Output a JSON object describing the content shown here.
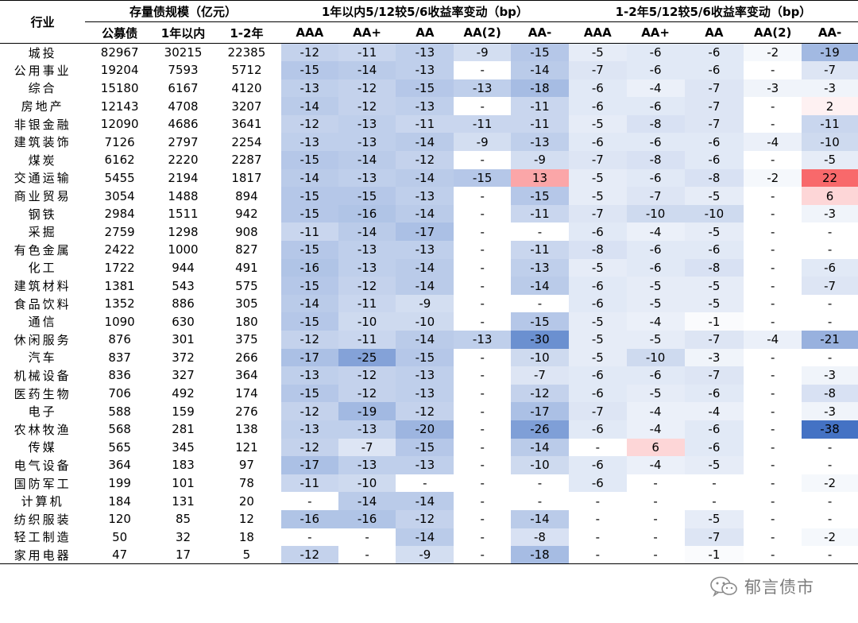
{
  "header": {
    "label_col": "行业",
    "group_scale": "存量债规模（亿元）",
    "group_1y": "1年以内5/12较5/6收益率变动（bp）",
    "group_12y": "1-2年5/12较5/6收益率变动（bp）",
    "scale_cols": [
      "公募债",
      "1年以内",
      "1-2年"
    ],
    "rating_cols": [
      "AAA",
      "AA+",
      "AA",
      "AA(2)",
      "AA-"
    ]
  },
  "colors": {
    "negative": "#4472c4",
    "positive": "#f8696b",
    "neutral": "#ffffff"
  },
  "rows": [
    {
      "name": "城投",
      "scale": [
        "82967",
        "30215",
        "22385"
      ],
      "y1": [
        "-12",
        "-11",
        "-13",
        "-9",
        "-15"
      ],
      "y2": [
        "-5",
        "-6",
        "-6",
        "-2",
        "-19"
      ]
    },
    {
      "name": "公用事业",
      "scale": [
        "19204",
        "7593",
        "5712"
      ],
      "y1": [
        "-15",
        "-14",
        "-13",
        "-",
        "-14"
      ],
      "y2": [
        "-7",
        "-6",
        "-6",
        "-",
        "-7"
      ]
    },
    {
      "name": "综合",
      "scale": [
        "15180",
        "6167",
        "4120"
      ],
      "y1": [
        "-13",
        "-12",
        "-15",
        "-13",
        "-18"
      ],
      "y2": [
        "-6",
        "-4",
        "-7",
        "-3",
        "-3"
      ]
    },
    {
      "name": "房地产",
      "scale": [
        "12143",
        "4708",
        "3207"
      ],
      "y1": [
        "-14",
        "-12",
        "-13",
        "-",
        "-11"
      ],
      "y2": [
        "-6",
        "-6",
        "-7",
        "-",
        "2"
      ]
    },
    {
      "name": "非银金融",
      "scale": [
        "12090",
        "4686",
        "3641"
      ],
      "y1": [
        "-12",
        "-13",
        "-11",
        "-11",
        "-11"
      ],
      "y2": [
        "-5",
        "-8",
        "-7",
        "-",
        "-11"
      ]
    },
    {
      "name": "建筑装饰",
      "scale": [
        "7126",
        "2797",
        "2254"
      ],
      "y1": [
        "-13",
        "-13",
        "-14",
        "-9",
        "-13"
      ],
      "y2": [
        "-6",
        "-6",
        "-6",
        "-4",
        "-10"
      ]
    },
    {
      "name": "煤炭",
      "scale": [
        "6162",
        "2220",
        "2287"
      ],
      "y1": [
        "-15",
        "-14",
        "-12",
        "-",
        "-9"
      ],
      "y2": [
        "-7",
        "-8",
        "-6",
        "-",
        "-5"
      ]
    },
    {
      "name": "交通运输",
      "scale": [
        "5455",
        "2194",
        "1817"
      ],
      "y1": [
        "-14",
        "-13",
        "-14",
        "-15",
        "13"
      ],
      "y2": [
        "-5",
        "-6",
        "-8",
        "-2",
        "22"
      ]
    },
    {
      "name": "商业贸易",
      "scale": [
        "3054",
        "1488",
        "894"
      ],
      "y1": [
        "-15",
        "-15",
        "-13",
        "-",
        "-15"
      ],
      "y2": [
        "-5",
        "-7",
        "-5",
        "-",
        "6"
      ]
    },
    {
      "name": "钢铁",
      "scale": [
        "2984",
        "1511",
        "942"
      ],
      "y1": [
        "-15",
        "-16",
        "-14",
        "-",
        "-11"
      ],
      "y2": [
        "-7",
        "-10",
        "-10",
        "-",
        "-3"
      ]
    },
    {
      "name": "采掘",
      "scale": [
        "2759",
        "1298",
        "908"
      ],
      "y1": [
        "-11",
        "-14",
        "-17",
        "-",
        "-"
      ],
      "y2": [
        "-6",
        "-4",
        "-5",
        "-",
        "-"
      ]
    },
    {
      "name": "有色金属",
      "scale": [
        "2422",
        "1000",
        "827"
      ],
      "y1": [
        "-15",
        "-13",
        "-13",
        "-",
        "-11"
      ],
      "y2": [
        "-8",
        "-6",
        "-6",
        "-",
        "-"
      ]
    },
    {
      "name": "化工",
      "scale": [
        "1722",
        "944",
        "491"
      ],
      "y1": [
        "-16",
        "-13",
        "-14",
        "-",
        "-13"
      ],
      "y2": [
        "-5",
        "-6",
        "-8",
        "-",
        "-6"
      ]
    },
    {
      "name": "建筑材料",
      "scale": [
        "1381",
        "543",
        "575"
      ],
      "y1": [
        "-15",
        "-12",
        "-14",
        "-",
        "-14"
      ],
      "y2": [
        "-6",
        "-5",
        "-5",
        "-",
        "-7"
      ]
    },
    {
      "name": "食品饮料",
      "scale": [
        "1352",
        "886",
        "305"
      ],
      "y1": [
        "-14",
        "-11",
        "-9",
        "-",
        "-"
      ],
      "y2": [
        "-6",
        "-5",
        "-5",
        "-",
        "-"
      ]
    },
    {
      "name": "通信",
      "scale": [
        "1090",
        "630",
        "180"
      ],
      "y1": [
        "-15",
        "-10",
        "-10",
        "-",
        "-15"
      ],
      "y2": [
        "-5",
        "-4",
        "-1",
        "-",
        "-"
      ]
    },
    {
      "name": "休闲服务",
      "scale": [
        "876",
        "301",
        "375"
      ],
      "y1": [
        "-12",
        "-11",
        "-14",
        "-13",
        "-30"
      ],
      "y2": [
        "-5",
        "-5",
        "-7",
        "-4",
        "-21"
      ]
    },
    {
      "name": "汽车",
      "scale": [
        "837",
        "372",
        "266"
      ],
      "y1": [
        "-17",
        "-25",
        "-15",
        "-",
        "-10"
      ],
      "y2": [
        "-5",
        "-10",
        "-3",
        "-",
        "-"
      ]
    },
    {
      "name": "机械设备",
      "scale": [
        "836",
        "327",
        "364"
      ],
      "y1": [
        "-13",
        "-12",
        "-13",
        "-",
        "-7"
      ],
      "y2": [
        "-6",
        "-6",
        "-7",
        "-",
        "-3"
      ]
    },
    {
      "name": "医药生物",
      "scale": [
        "706",
        "492",
        "174"
      ],
      "y1": [
        "-15",
        "-12",
        "-13",
        "-",
        "-12"
      ],
      "y2": [
        "-6",
        "-5",
        "-6",
        "-",
        "-8"
      ]
    },
    {
      "name": "电子",
      "scale": [
        "588",
        "159",
        "276"
      ],
      "y1": [
        "-12",
        "-19",
        "-12",
        "-",
        "-17"
      ],
      "y2": [
        "-7",
        "-4",
        "-4",
        "-",
        "-3"
      ]
    },
    {
      "name": "农林牧渔",
      "scale": [
        "568",
        "281",
        "138"
      ],
      "y1": [
        "-13",
        "-13",
        "-20",
        "-",
        "-26"
      ],
      "y2": [
        "-6",
        "-4",
        "-6",
        "-",
        "-38"
      ]
    },
    {
      "name": "传媒",
      "scale": [
        "565",
        "345",
        "121"
      ],
      "y1": [
        "-12",
        "-7",
        "-15",
        "-",
        "-14"
      ],
      "y2": [
        "-",
        "6",
        "-6",
        "-",
        "-"
      ]
    },
    {
      "name": "电气设备",
      "scale": [
        "364",
        "183",
        "97"
      ],
      "y1": [
        "-17",
        "-13",
        "-13",
        "-",
        "-10"
      ],
      "y2": [
        "-6",
        "-4",
        "-5",
        "-",
        "-"
      ]
    },
    {
      "name": "国防军工",
      "scale": [
        "199",
        "101",
        "78"
      ],
      "y1": [
        "-11",
        "-10",
        "-",
        "-",
        "-"
      ],
      "y2": [
        "-6",
        "-",
        "-",
        "-",
        "-2"
      ]
    },
    {
      "name": "计算机",
      "scale": [
        "184",
        "131",
        "20"
      ],
      "y1": [
        "-",
        "-14",
        "-14",
        "-",
        "-"
      ],
      "y2": [
        "-",
        "-",
        "-",
        "-",
        "-"
      ]
    },
    {
      "name": "纺织服装",
      "scale": [
        "120",
        "85",
        "12"
      ],
      "y1": [
        "-16",
        "-16",
        "-12",
        "-",
        "-14"
      ],
      "y2": [
        "-",
        "-",
        "-5",
        "-",
        "-"
      ]
    },
    {
      "name": "轻工制造",
      "scale": [
        "50",
        "32",
        "18"
      ],
      "y1": [
        "-",
        "-",
        "-14",
        "-",
        "-8"
      ],
      "y2": [
        "-",
        "-",
        "-7",
        "-",
        "-2"
      ]
    },
    {
      "name": "家用电器",
      "scale": [
        "47",
        "17",
        "5"
      ],
      "y1": [
        "-12",
        "-",
        "-9",
        "-",
        "-18"
      ],
      "y2": [
        "-",
        "-",
        "-1",
        "-",
        "-"
      ]
    }
  ],
  "watermark": {
    "text": "郁言债市",
    "icon": "wechat-logo-icon"
  }
}
